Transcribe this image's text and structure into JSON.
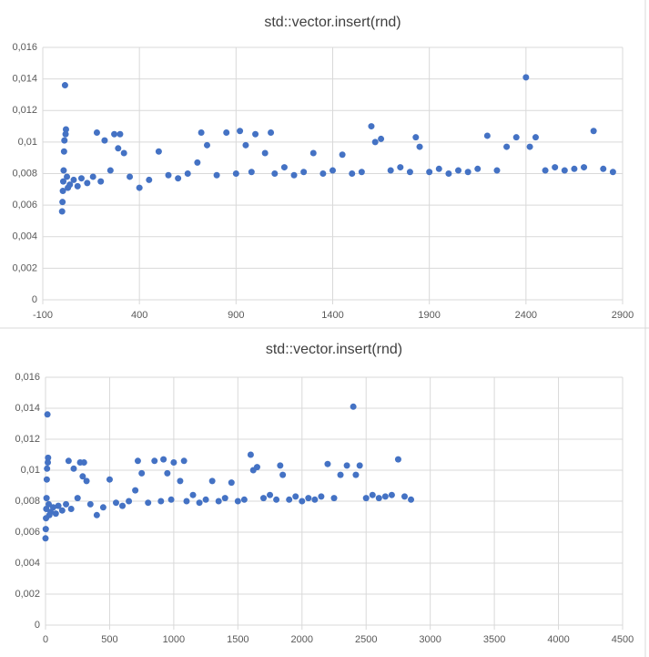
{
  "chart_data": [
    {
      "type": "scatter",
      "title": "std::vector.insert(rnd)",
      "color": "#4472c4",
      "grid": true,
      "x": [
        0,
        2,
        4,
        6,
        8,
        10,
        12,
        15,
        18,
        20,
        25,
        30,
        40,
        60,
        80,
        100,
        130,
        160,
        180,
        200,
        220,
        250,
        270,
        290,
        300,
        320,
        350,
        400,
        450,
        500,
        550,
        600,
        650,
        700,
        720,
        750,
        800,
        850,
        900,
        920,
        950,
        980,
        1000,
        1050,
        1080,
        1100,
        1150,
        1200,
        1250,
        1300,
        1350,
        1400,
        1450,
        1500,
        1550,
        1600,
        1620,
        1650,
        1700,
        1750,
        1800,
        1830,
        1850,
        1900,
        1950,
        2000,
        2050,
        2100,
        2150,
        2200,
        2250,
        2300,
        2350,
        2400,
        2420,
        2450,
        2500,
        2550,
        2600,
        2650,
        2700,
        2750,
        2800,
        2850
      ],
      "values": [
        0.0056,
        0.0062,
        0.0069,
        0.0075,
        0.0082,
        0.0094,
        0.0101,
        0.0136,
        0.0105,
        0.0108,
        0.0078,
        0.0071,
        0.0073,
        0.0076,
        0.0072,
        0.0077,
        0.0074,
        0.0078,
        0.0106,
        0.0075,
        0.0101,
        0.0082,
        0.0105,
        0.0096,
        0.0105,
        0.0093,
        0.0078,
        0.0071,
        0.0076,
        0.0094,
        0.0079,
        0.0077,
        0.008,
        0.0087,
        0.0106,
        0.0098,
        0.0079,
        0.0106,
        0.008,
        0.0107,
        0.0098,
        0.0081,
        0.0105,
        0.0093,
        0.0106,
        0.008,
        0.0084,
        0.0079,
        0.0081,
        0.0093,
        0.008,
        0.0082,
        0.0092,
        0.008,
        0.0081,
        0.011,
        0.01,
        0.0102,
        0.0082,
        0.0084,
        0.0081,
        0.0103,
        0.0097,
        0.0081,
        0.0083,
        0.008,
        0.0082,
        0.0081,
        0.0083,
        0.0104,
        0.0082,
        0.0097,
        0.0103,
        0.0141,
        0.0097,
        0.0103,
        0.0082,
        0.0084,
        0.0082,
        0.0083,
        0.0084,
        0.0107,
        0.0083,
        0.0081
      ],
      "xlim": [
        -100,
        2900
      ],
      "xticks": [
        -100,
        400,
        900,
        1400,
        1900,
        2400,
        2900
      ],
      "ylim": [
        0,
        0.016
      ],
      "yticks": [
        0,
        {
          "value": 0.002,
          "label": "0,002"
        },
        {
          "value": 0.004,
          "label": "0,004"
        },
        {
          "value": 0.006,
          "label": "0,006"
        },
        {
          "value": 0.008,
          "label": "0,008"
        },
        {
          "value": 0.01,
          "label": "0,01"
        },
        {
          "value": 0.012,
          "label": "0,012"
        },
        {
          "value": 0.014,
          "label": "0,014"
        },
        {
          "value": 0.016,
          "label": "0,016"
        }
      ]
    },
    {
      "type": "scatter",
      "title": "std::vector.insert(rnd)",
      "color": "#4472c4",
      "grid": true,
      "x": [
        0,
        2,
        4,
        6,
        8,
        10,
        12,
        15,
        18,
        20,
        25,
        30,
        40,
        60,
        80,
        100,
        130,
        160,
        180,
        200,
        220,
        250,
        270,
        290,
        300,
        320,
        350,
        400,
        450,
        500,
        550,
        600,
        650,
        700,
        720,
        750,
        800,
        850,
        900,
        920,
        950,
        980,
        1000,
        1050,
        1080,
        1100,
        1150,
        1200,
        1250,
        1300,
        1350,
        1400,
        1450,
        1500,
        1550,
        1600,
        1620,
        1650,
        1700,
        1750,
        1800,
        1830,
        1850,
        1900,
        1950,
        2000,
        2050,
        2100,
        2150,
        2200,
        2250,
        2300,
        2350,
        2400,
        2420,
        2450,
        2500,
        2550,
        2600,
        2650,
        2700,
        2750,
        2800,
        2850
      ],
      "values": [
        0.0056,
        0.0062,
        0.0069,
        0.0075,
        0.0082,
        0.0094,
        0.0101,
        0.0136,
        0.0105,
        0.0108,
        0.0078,
        0.0071,
        0.0073,
        0.0076,
        0.0072,
        0.0077,
        0.0074,
        0.0078,
        0.0106,
        0.0075,
        0.0101,
        0.0082,
        0.0105,
        0.0096,
        0.0105,
        0.0093,
        0.0078,
        0.0071,
        0.0076,
        0.0094,
        0.0079,
        0.0077,
        0.008,
        0.0087,
        0.0106,
        0.0098,
        0.0079,
        0.0106,
        0.008,
        0.0107,
        0.0098,
        0.0081,
        0.0105,
        0.0093,
        0.0106,
        0.008,
        0.0084,
        0.0079,
        0.0081,
        0.0093,
        0.008,
        0.0082,
        0.0092,
        0.008,
        0.0081,
        0.011,
        0.01,
        0.0102,
        0.0082,
        0.0084,
        0.0081,
        0.0103,
        0.0097,
        0.0081,
        0.0083,
        0.008,
        0.0082,
        0.0081,
        0.0083,
        0.0104,
        0.0082,
        0.0097,
        0.0103,
        0.0141,
        0.0097,
        0.0103,
        0.0082,
        0.0084,
        0.0082,
        0.0083,
        0.0084,
        0.0107,
        0.0083,
        0.0081
      ],
      "xlim": [
        0,
        4500
      ],
      "xticks": [
        0,
        500,
        1000,
        1500,
        2000,
        2500,
        3000,
        3500,
        4000,
        4500
      ],
      "ylim": [
        0,
        0.016
      ],
      "yticks": [
        0,
        {
          "value": 0.002,
          "label": "0,002"
        },
        {
          "value": 0.004,
          "label": "0,004"
        },
        {
          "value": 0.006,
          "label": "0,006"
        },
        {
          "value": 0.008,
          "label": "0,008"
        },
        {
          "value": 0.01,
          "label": "0,01"
        },
        {
          "value": 0.012,
          "label": "0,012"
        },
        {
          "value": 0.014,
          "label": "0,014"
        },
        {
          "value": 0.016,
          "label": "0,016"
        }
      ]
    }
  ]
}
